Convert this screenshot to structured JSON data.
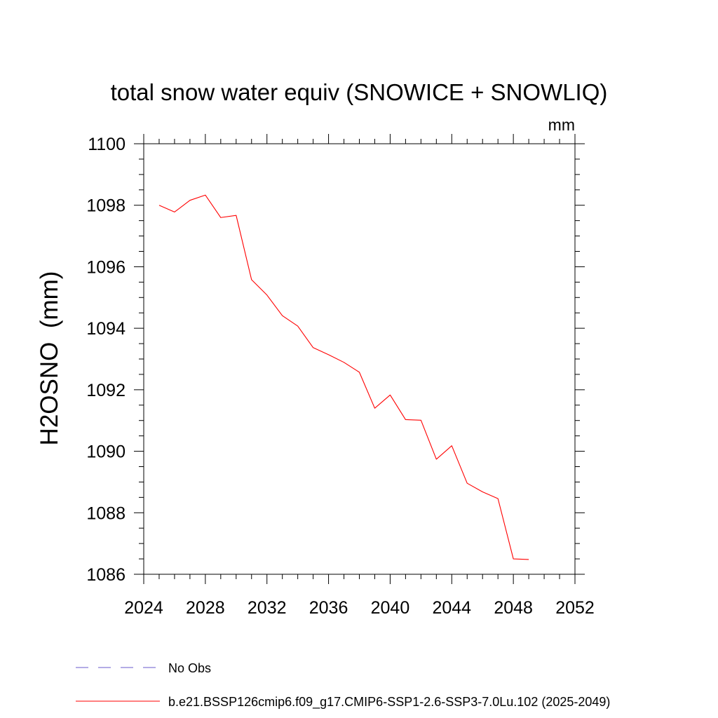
{
  "chart_data": {
    "type": "line",
    "title": "total snow water equiv (SNOWICE + SNOWLIQ)",
    "units_label": "mm",
    "xlabel": "",
    "ylabel": "H2OSNO  (mm)",
    "xlim": [
      2024,
      2052
    ],
    "ylim": [
      1086,
      1100
    ],
    "x_ticks": [
      2024,
      2028,
      2032,
      2036,
      2040,
      2044,
      2048,
      2052
    ],
    "x_tick_labels": [
      "2024",
      "2028",
      "2032",
      "2036",
      "2040",
      "2044",
      "2048",
      "2052"
    ],
    "y_ticks": [
      1086,
      1088,
      1090,
      1092,
      1094,
      1096,
      1098,
      1100
    ],
    "y_tick_labels": [
      "1086",
      "1088",
      "1090",
      "1092",
      "1094",
      "1096",
      "1098",
      "1100"
    ],
    "x_minor_step": 1,
    "y_minor_step": 0.5,
    "grid": false,
    "legend_placement": "bottom-left",
    "series": [
      {
        "name": "No Obs",
        "color": "#6a5acd",
        "dash": "dashed",
        "x": [],
        "y": []
      },
      {
        "name": "b.e21.BSSP126cmip6.f09_g17.CMIP6-SSP1-2.6-SSP3-7.0Lu.102 (2025-2049)",
        "color": "#ff0000",
        "dash": "solid",
        "x": [
          2025,
          2026,
          2027,
          2028,
          2029,
          2030,
          2031,
          2032,
          2033,
          2034,
          2035,
          2036,
          2037,
          2038,
          2039,
          2040,
          2041,
          2042,
          2043,
          2044,
          2045,
          2046,
          2047,
          2048,
          2049
        ],
        "y": [
          1098.0,
          1097.78,
          1098.16,
          1098.33,
          1097.6,
          1097.67,
          1095.58,
          1095.08,
          1094.41,
          1094.07,
          1093.37,
          1093.14,
          1092.89,
          1092.57,
          1091.4,
          1091.83,
          1091.03,
          1091.01,
          1089.74,
          1090.18,
          1088.96,
          1088.68,
          1088.46,
          1086.5,
          1086.48
        ]
      }
    ]
  }
}
